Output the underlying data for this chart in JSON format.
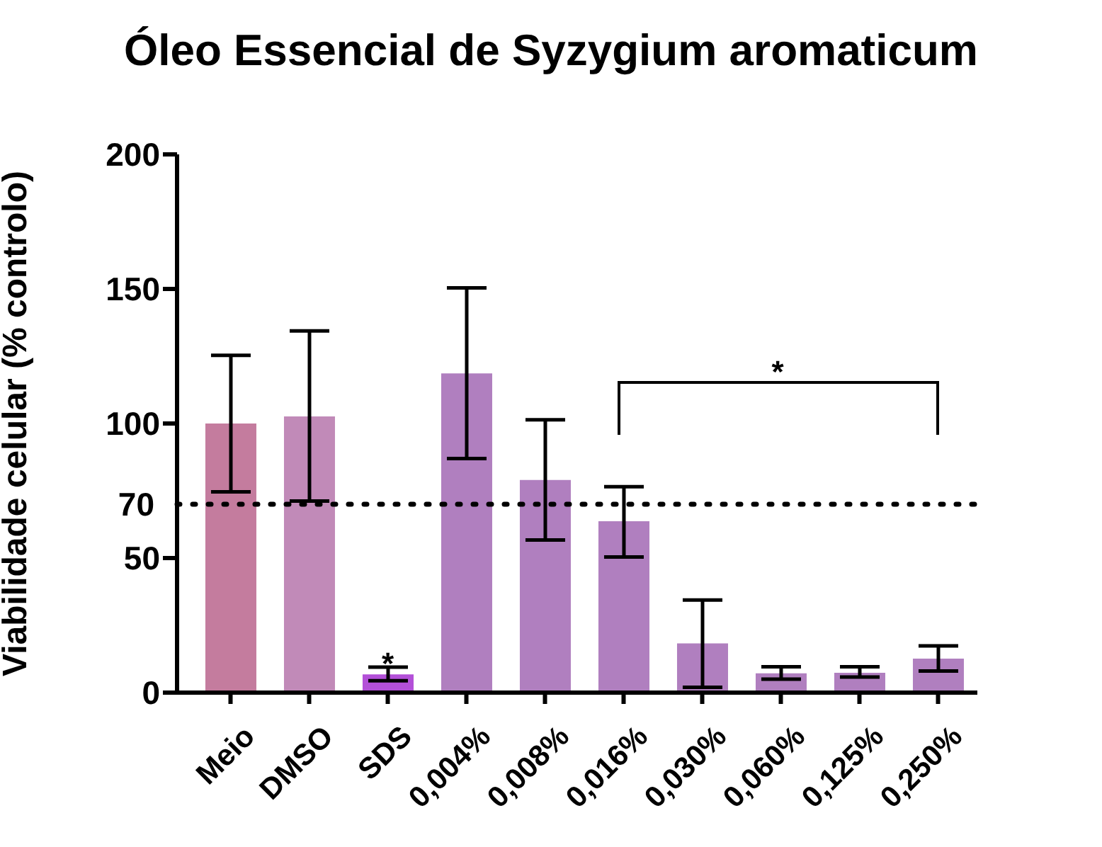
{
  "chart_data": {
    "type": "bar",
    "title": "Óleo Essencial de Syzygium aromaticum",
    "ylabel": "Viabilidade celular (% controlo)",
    "categories": [
      "Meio",
      "DMSO",
      "SDS",
      "0,004%",
      "0,008%",
      "0,016%",
      "0,030%",
      "0,060%",
      "0,125%",
      "0,250%"
    ],
    "values": [
      100,
      102.6,
      6.8,
      118.6,
      79,
      63.7,
      18.3,
      7.2,
      7.4,
      12.6
    ],
    "colors": [
      "#c47c9e",
      "#c18ab8",
      "#b350d8",
      "#b07fbf",
      "#b07fbf",
      "#b07fbf",
      "#b07fbf",
      "#b07fbf",
      "#b07fbf",
      "#b07fbf"
    ],
    "errors": [
      [
        74.6,
        125.3
      ],
      [
        71.2,
        134.4
      ],
      [
        4.4,
        9.5
      ],
      [
        87,
        150.4
      ],
      [
        56.7,
        101.4
      ],
      [
        50.4,
        76.5
      ],
      [
        2,
        34.4
      ],
      [
        5,
        9.6
      ],
      [
        5.8,
        9.6
      ],
      [
        8,
        17.4
      ]
    ],
    "ylim": [
      0,
      200
    ],
    "yticks": [
      0,
      50,
      100,
      150,
      200
    ],
    "grid": false,
    "legend": false,
    "ref_lines": [
      {
        "axis": "y",
        "value": 70,
        "label": "70",
        "color": "#000000",
        "line_style": "dotted"
      }
    ],
    "annotations": [
      {
        "text": "*",
        "x": "SDS",
        "y": 12
      },
      "*"
    ]
  }
}
